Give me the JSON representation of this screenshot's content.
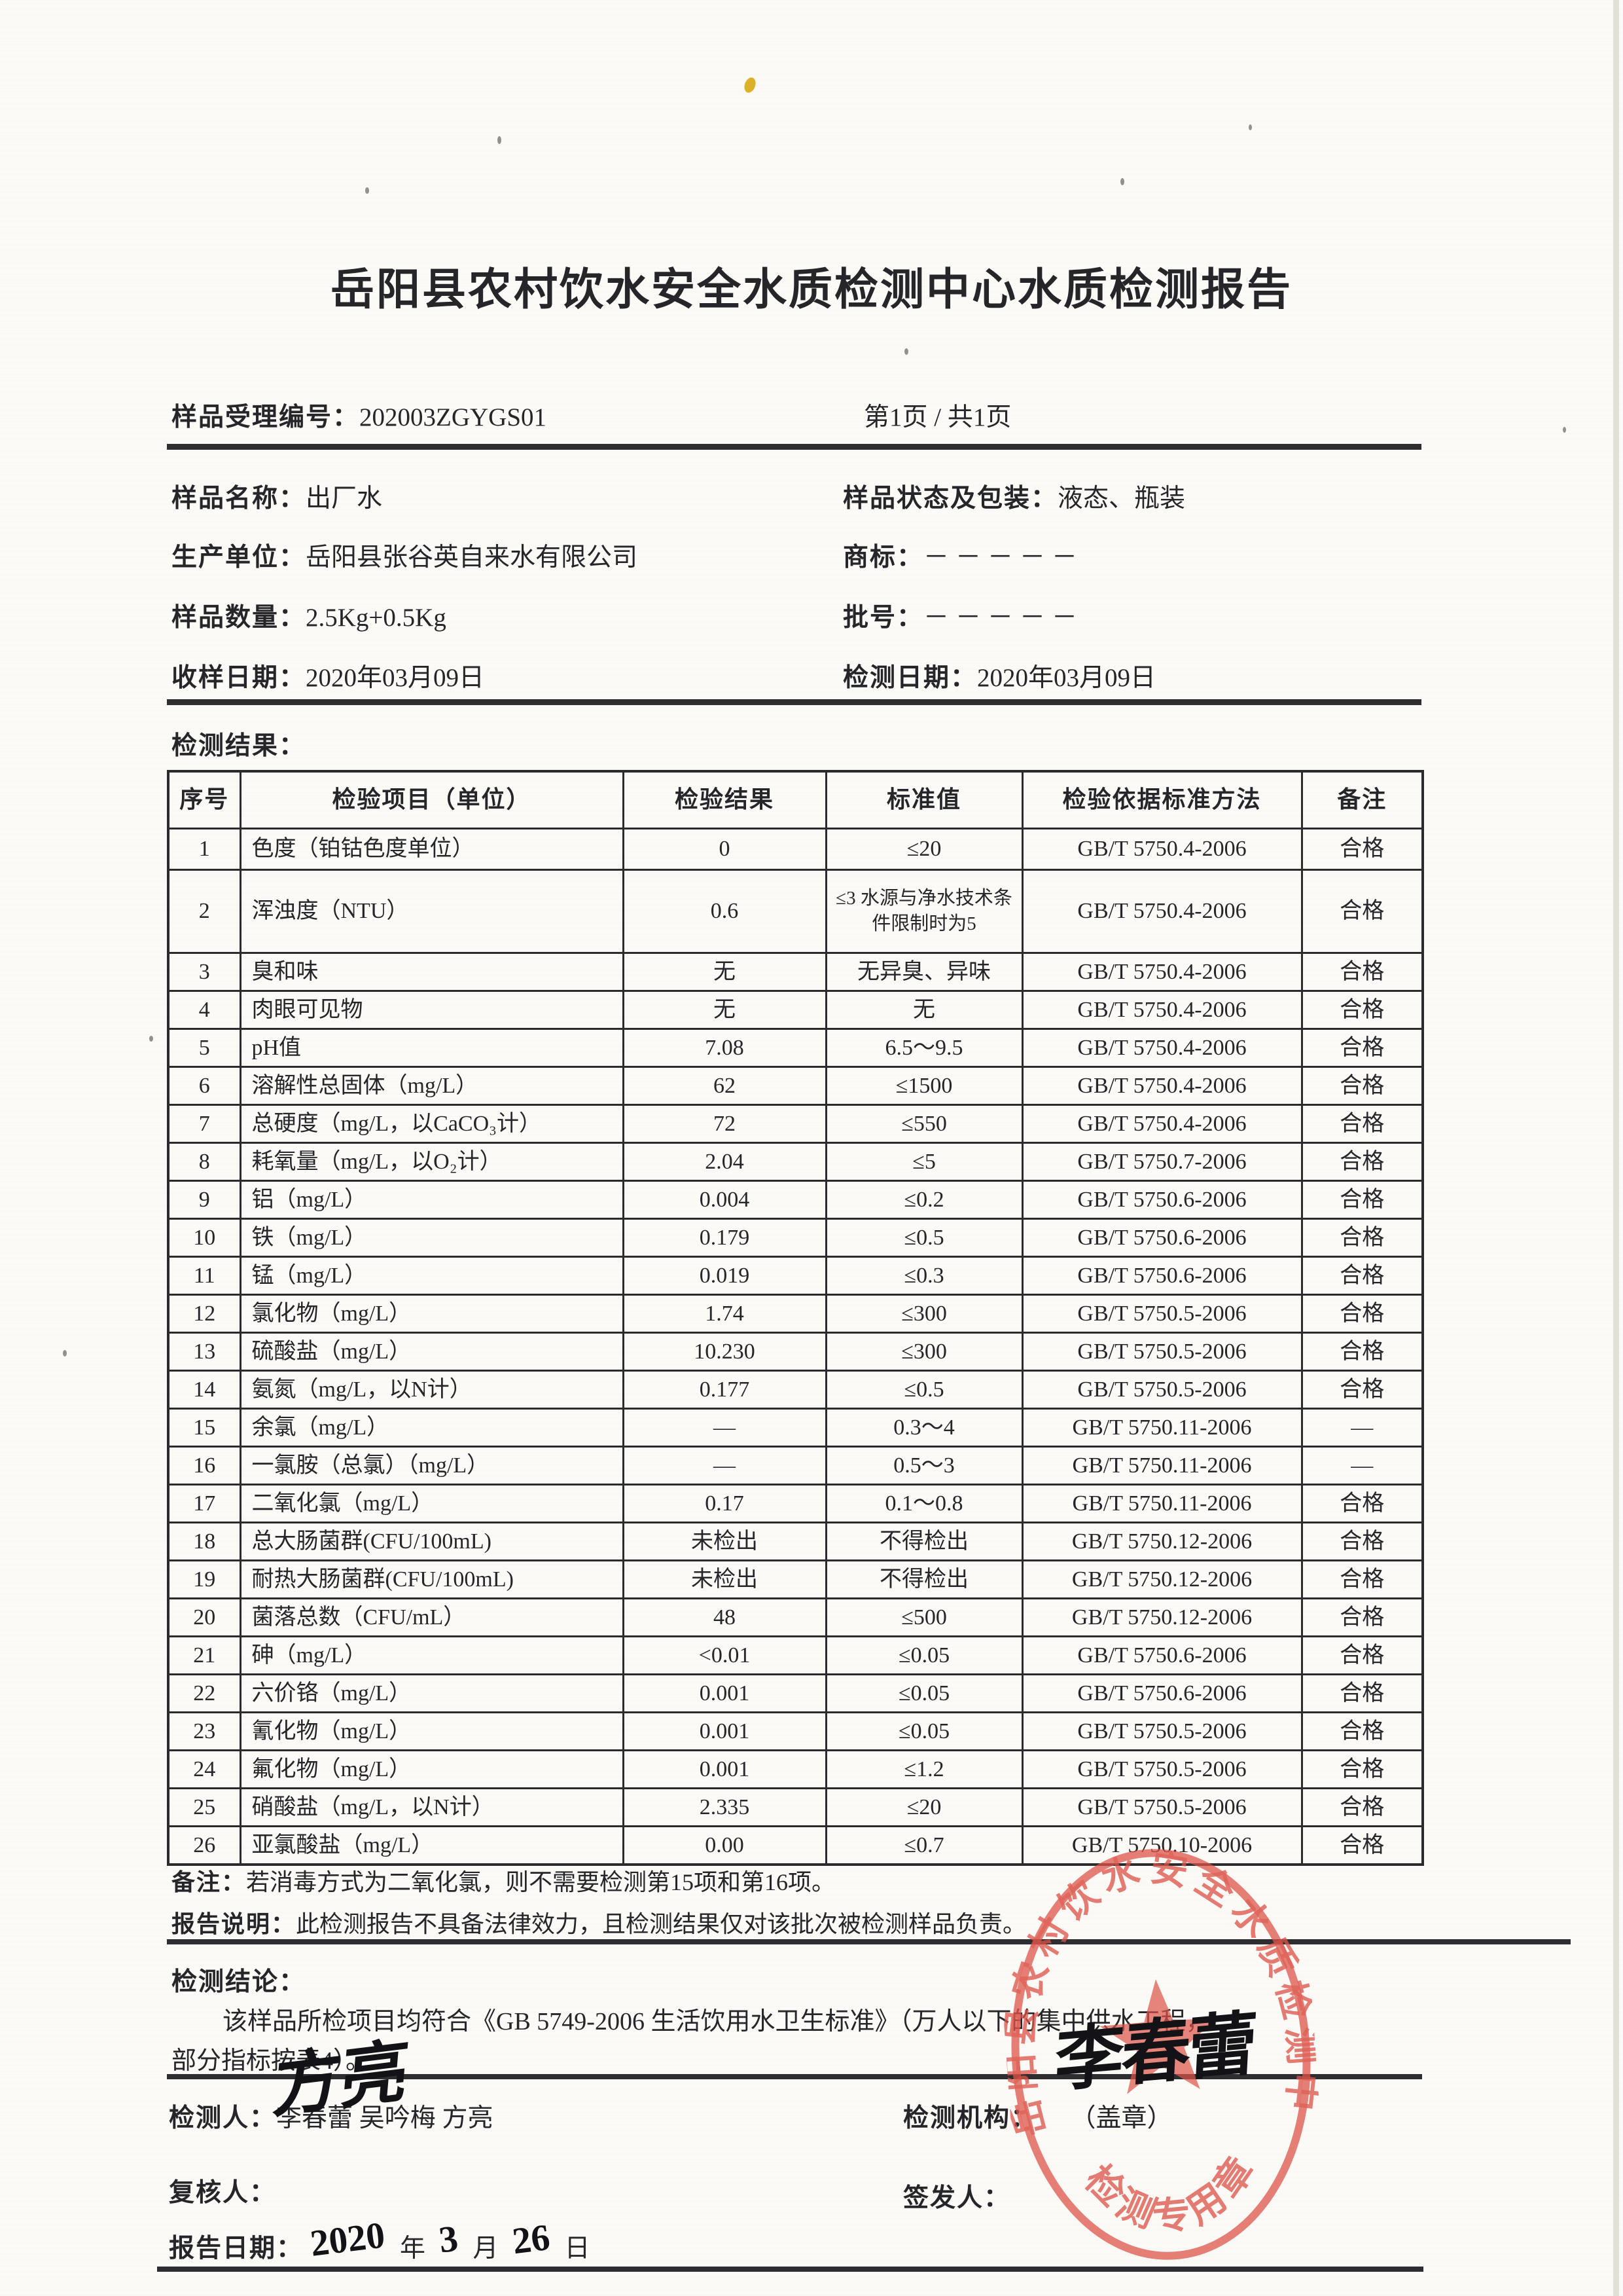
{
  "colors": {
    "ink": "#26262a",
    "stamp_red": "#dd5348",
    "rule_line": "#2e2e31"
  },
  "header": {
    "title": "岳阳县农村饮水安全水质检测中心水质检测报告"
  },
  "info": {
    "sample_no_label": "样品受理编号：",
    "sample_no_value": "202003ZGYGS01",
    "page_info": "第1页 / 共1页",
    "sample_name_label": "样品名称：",
    "sample_name_value": "出厂水",
    "package_label": "样品状态及包装：",
    "package_value": "液态、瓶装",
    "producer_label": "生产单位：",
    "producer_value": "岳阳县张谷英自来水有限公司",
    "brand_label": "商标：",
    "brand_value": "－－－－－",
    "quantity_label": "样品数量：",
    "quantity_value": "2.5Kg+0.5Kg",
    "batch_label": "批号：",
    "batch_value": "－－－－－",
    "receive_date_label": "收样日期：",
    "receive_date_value": "2020年03月09日",
    "test_date_label": "检测日期：",
    "test_date_value": "2020年03月09日",
    "results_label": "检测结果："
  },
  "table": {
    "headers": [
      "序号",
      "检验项目（单位）",
      "检验结果",
      "标准值",
      "检验依据标准方法",
      "备注"
    ],
    "rows": [
      [
        "1",
        "色度（铂钴色度单位）",
        "0",
        "≤20",
        "GB/T 5750.4-2006",
        "合格"
      ],
      [
        "2",
        "浑浊度（NTU）",
        "0.6",
        "≤3 水源与净水技术条件限制时为5",
        "GB/T 5750.4-2006",
        "合格"
      ],
      [
        "3",
        "臭和味",
        "无",
        "无异臭、异味",
        "GB/T 5750.4-2006",
        "合格"
      ],
      [
        "4",
        "肉眼可见物",
        "无",
        "无",
        "GB/T 5750.4-2006",
        "合格"
      ],
      [
        "5",
        "pH值",
        "7.08",
        "6.5～9.5",
        "GB/T 5750.4-2006",
        "合格"
      ],
      [
        "6",
        "溶解性总固体（mg/L）",
        "62",
        "≤1500",
        "GB/T 5750.4-2006",
        "合格"
      ],
      [
        "7",
        "总硬度（mg/L，以CaCO₃计）",
        "72",
        "≤550",
        "GB/T 5750.4-2006",
        "合格"
      ],
      [
        "8",
        "耗氧量（mg/L，以O₂计）",
        "2.04",
        "≤5",
        "GB/T 5750.7-2006",
        "合格"
      ],
      [
        "9",
        "铝（mg/L）",
        "0.004",
        "≤0.2",
        "GB/T 5750.6-2006",
        "合格"
      ],
      [
        "10",
        "铁（mg/L）",
        "0.179",
        "≤0.5",
        "GB/T 5750.6-2006",
        "合格"
      ],
      [
        "11",
        "锰（mg/L）",
        "0.019",
        "≤0.3",
        "GB/T 5750.6-2006",
        "合格"
      ],
      [
        "12",
        "氯化物（mg/L）",
        "1.74",
        "≤300",
        "GB/T 5750.5-2006",
        "合格"
      ],
      [
        "13",
        "硫酸盐（mg/L）",
        "10.230",
        "≤300",
        "GB/T 5750.5-2006",
        "合格"
      ],
      [
        "14",
        "氨氮（mg/L，以N计）",
        "0.177",
        "≤0.5",
        "GB/T 5750.5-2006",
        "合格"
      ],
      [
        "15",
        "余氯（mg/L）",
        "—",
        "0.3～4",
        "GB/T 5750.11-2006",
        "—"
      ],
      [
        "16",
        "一氯胺（总氯）（mg/L）",
        "—",
        "0.5～3",
        "GB/T 5750.11-2006",
        "—"
      ],
      [
        "17",
        "二氧化氯（mg/L）",
        "0.17",
        "0.1～0.8",
        "GB/T 5750.11-2006",
        "合格"
      ],
      [
        "18",
        "总大肠菌群(CFU/100mL)",
        "未检出",
        "不得检出",
        "GB/T 5750.12-2006",
        "合格"
      ],
      [
        "19",
        "耐热大肠菌群(CFU/100mL)",
        "未检出",
        "不得检出",
        "GB/T 5750.12-2006",
        "合格"
      ],
      [
        "20",
        "菌落总数（CFU/mL）",
        "48",
        "≤500",
        "GB/T 5750.12-2006",
        "合格"
      ],
      [
        "21",
        "砷（mg/L）",
        "<0.01",
        "≤0.05",
        "GB/T 5750.6-2006",
        "合格"
      ],
      [
        "22",
        "六价铬（mg/L）",
        "0.001",
        "≤0.05",
        "GB/T 5750.6-2006",
        "合格"
      ],
      [
        "23",
        "氰化物（mg/L）",
        "0.001",
        "≤0.05",
        "GB/T 5750.5-2006",
        "合格"
      ],
      [
        "24",
        "氟化物（mg/L）",
        "0.001",
        "≤1.2",
        "GB/T 5750.5-2006",
        "合格"
      ],
      [
        "25",
        "硝酸盐（mg/L，以N计）",
        "2.335",
        "≤20",
        "GB/T 5750.5-2006",
        "合格"
      ],
      [
        "26",
        "亚氯酸盐（mg/L）",
        "0.00",
        "≤0.7",
        "GB/T 5750.10-2006",
        "合格"
      ]
    ]
  },
  "notes": {
    "remark_label": "备注：",
    "remark_text": "若消毒方式为二氧化氯，则不需要检测第15项和第16项。",
    "statement_label": "报告说明：",
    "statement_text": "此检测报告不具备法律效力，且检测结果仅对该批次被检测样品负责。",
    "conclusion_label": "检测结论：",
    "conclusion_line1": "该样品所检项目均符合《GB 5749-2006 生活饮用水卫生标准》（万人以下的集中供水工程，",
    "conclusion_line2": "部分指标按表4）。"
  },
  "footer": {
    "tester_label": "检测人：",
    "tester_value": "李春蕾  吴吟梅  方亮",
    "agency_label": "检测机构：",
    "agency_value": "（盖章）",
    "reviewer_label": "复核人：",
    "reviewer_signature": "方亮",
    "issuer_label": "签发人：",
    "issuer_signature": "李春蕾",
    "date_label": "报告日期：",
    "date_year": "2020",
    "date_year_unit": "年",
    "date_month": "3",
    "date_month_unit": "月",
    "date_day": "26",
    "date_day_unit": "日"
  },
  "stamp": {
    "ring_text": "岳阳县农村饮水安全水质检测中心",
    "bottom_text": "检测专用章"
  }
}
